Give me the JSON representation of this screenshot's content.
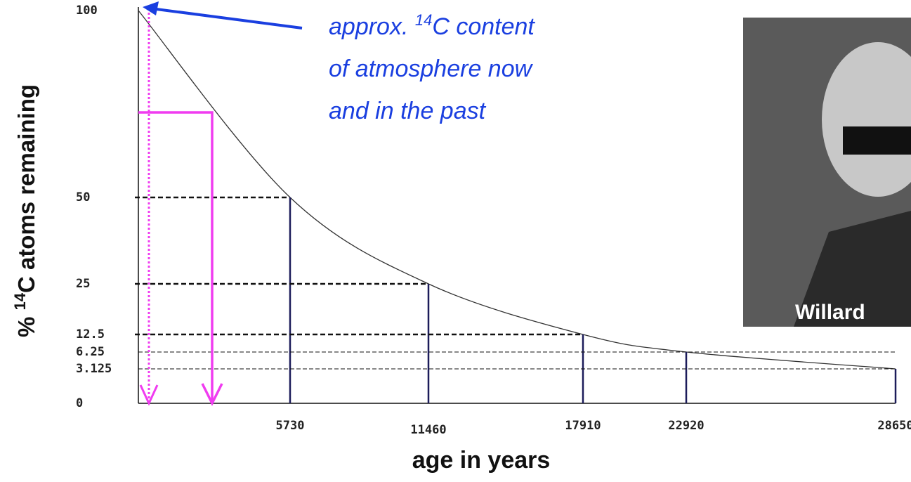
{
  "chart_data": {
    "type": "line",
    "y_label": {
      "prefix": "% ",
      "sup": "14",
      "rest": "C atoms remaining"
    },
    "x_label": "age in years",
    "annotation": {
      "prefix": "approx. ",
      "sup": "14",
      "rest": "C content",
      "lines": [
        "of atmosphere now",
        "and in the past"
      ]
    },
    "photo_caption": "Willard",
    "x": [
      0,
      5730,
      11460,
      17910,
      22920,
      28650
    ],
    "series": [
      {
        "color": "#333333",
        "values": [
          100,
          50,
          25,
          12.5,
          6.25,
          3.125
        ]
      }
    ],
    "xlim": [
      0,
      28650
    ],
    "xticks": [
      0,
      5730,
      11460,
      17910,
      22920,
      28650
    ],
    "ylim": [
      0,
      100
    ],
    "yticks": [
      0,
      3.125,
      6.25,
      12.5,
      25,
      50,
      100
    ]
  }
}
